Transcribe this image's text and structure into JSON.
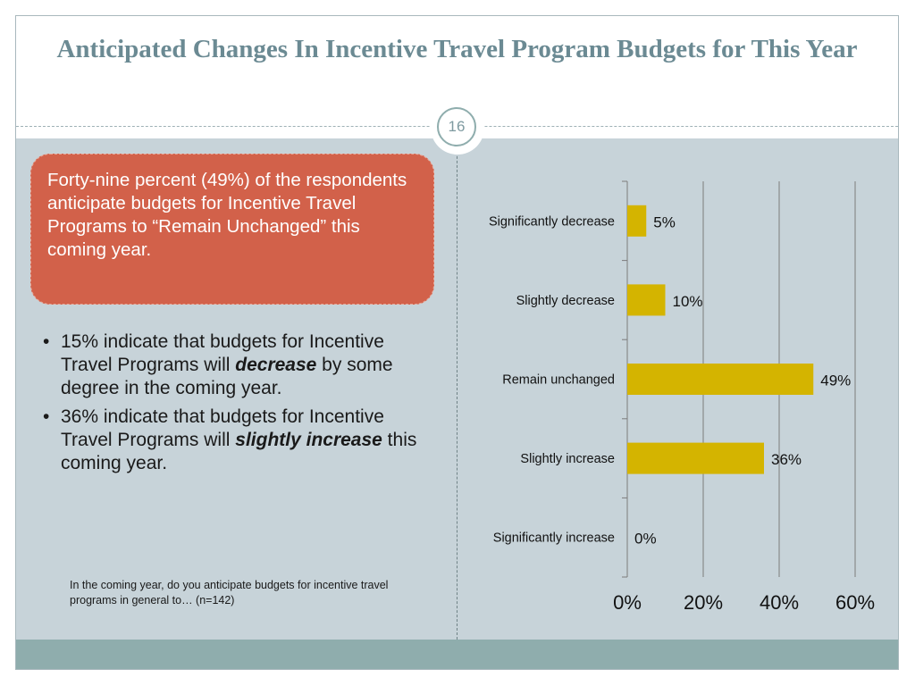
{
  "slide": {
    "title": "Anticipated Changes In Incentive Travel Program Budgets for This Year",
    "page_number": "16",
    "callout": "Forty-nine percent (49%) of the respondents anticipate budgets for Incentive Travel Programs to “Remain Unchanged” this coming year.",
    "bullets": [
      {
        "pre": "15% indicate that budgets for Incentive Travel Programs will ",
        "emph": "decrease",
        "post": " by some degree in the coming year."
      },
      {
        "pre": "36% indicate that budgets for Incentive Travel Programs will ",
        "emph": "slightly increase",
        "post": " this coming year."
      }
    ],
    "question": "In the coming year, do you anticipate budgets for incentive travel programs in general to… (n=142)"
  },
  "colors": {
    "bar": "#d4b400",
    "callout": "#d2614a",
    "title": "#6b8a93",
    "content_bg": "#c7d3d9",
    "footer_band": "#8fadad"
  },
  "chart_data": {
    "type": "bar",
    "orientation": "horizontal",
    "categories": [
      "Significantly decrease",
      "Slightly decrease",
      "Remain unchanged",
      "Slightly increase",
      "Significantly increase"
    ],
    "values": [
      5,
      10,
      49,
      36,
      0
    ],
    "data_labels": [
      "5%",
      "10%",
      "49%",
      "36%",
      "0%"
    ],
    "x_ticks": [
      "0%",
      "20%",
      "40%",
      "60%"
    ],
    "xlim": [
      0,
      60
    ],
    "grid": true,
    "legend": "none"
  }
}
